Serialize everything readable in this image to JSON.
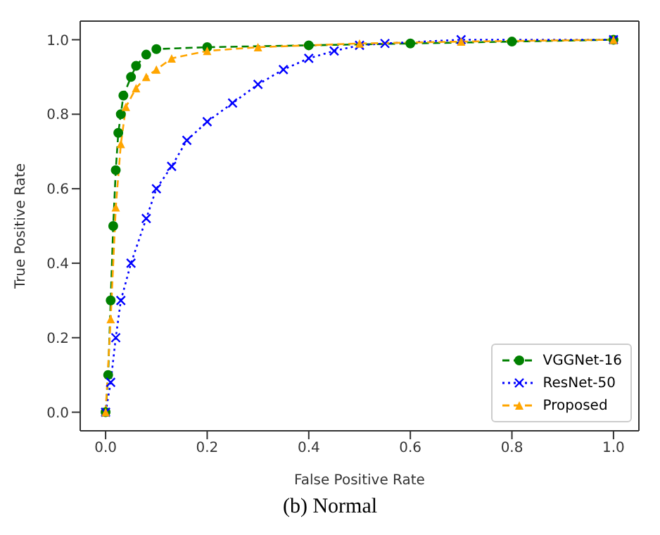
{
  "chart_data": {
    "type": "line",
    "xlabel": "False Positive Rate",
    "ylabel": "True Positive Rate",
    "xlim": [
      -0.05,
      1.05
    ],
    "ylim": [
      -0.05,
      1.05
    ],
    "xticks": [
      {
        "value": 0,
        "label": "0.0"
      },
      0.2,
      0.4,
      0.6,
      0.8,
      {
        "value": 1,
        "label": "1.0"
      }
    ],
    "yticks": [
      {
        "value": 0,
        "label": "0.0"
      },
      0.2,
      0.4,
      0.6,
      0.8,
      {
        "value": 1,
        "label": "1.0"
      }
    ],
    "grid": false,
    "legend": "bottom right",
    "series": [
      {
        "name": "VGGNet-16",
        "color": "#008000",
        "marker": "circle",
        "line_style": "dashed",
        "x": [
          0,
          0.005,
          0.01,
          0.015,
          0.02,
          0.025,
          0.03,
          0.035,
          0.05,
          0.06,
          0.08,
          0.1,
          0.2,
          0.4,
          0.6,
          0.8,
          1
        ],
        "values": [
          0,
          0.1,
          0.3,
          0.5,
          0.65,
          0.75,
          0.8,
          0.85,
          0.9,
          0.93,
          0.96,
          0.975,
          0.98,
          0.985,
          0.99,
          0.995,
          1
        ]
      },
      {
        "name": "ResNet-50",
        "color": "#0000ff",
        "marker": "cross",
        "line_style": "dotted",
        "x": [
          0,
          0.01,
          0.02,
          0.03,
          0.05,
          0.08,
          0.1,
          0.13,
          0.16,
          0.2,
          0.25,
          0.3,
          0.35,
          0.4,
          0.45,
          0.5,
          0.55,
          0.7,
          1
        ],
        "values": [
          0,
          0.08,
          0.2,
          0.3,
          0.4,
          0.52,
          0.6,
          0.66,
          0.73,
          0.78,
          0.83,
          0.88,
          0.92,
          0.95,
          0.97,
          0.985,
          0.99,
          1,
          1
        ]
      },
      {
        "name": "Proposed",
        "color": "#ffa500",
        "marker": "triangle",
        "line_style": "dashed",
        "x": [
          0,
          0.01,
          0.02,
          0.03,
          0.04,
          0.06,
          0.08,
          0.1,
          0.13,
          0.2,
          0.3,
          0.5,
          0.7,
          1
        ],
        "values": [
          0,
          0.25,
          0.55,
          0.72,
          0.82,
          0.87,
          0.9,
          0.92,
          0.95,
          0.97,
          0.98,
          0.99,
          0.995,
          1
        ]
      }
    ],
    "annotations": [
      "(b) Normal"
    ]
  }
}
